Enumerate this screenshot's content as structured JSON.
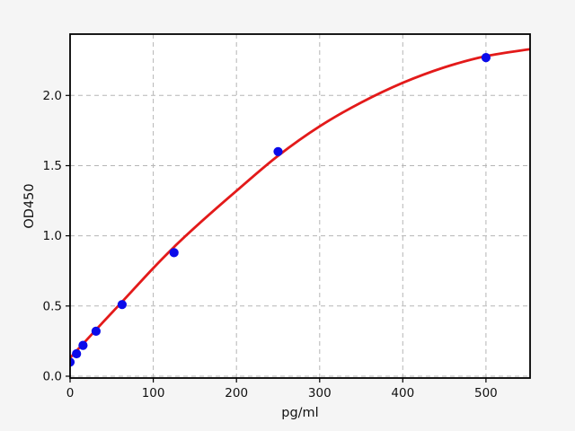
{
  "chart_data": {
    "type": "scatter",
    "xlabel": "pg/ml",
    "ylabel": "OD450",
    "x_tick_labels": [
      "0",
      "100",
      "200",
      "300",
      "400",
      "500"
    ],
    "y_tick_labels": [
      "0.0",
      "0.5",
      "1.0",
      "1.5",
      "2.0"
    ],
    "xlim": [
      0,
      553
    ],
    "ylim": [
      -0.013,
      2.437
    ],
    "grid": "dashed",
    "colors": {
      "figure_background": "#f5f5f5",
      "plot_background": "#ffffff",
      "grid": "#b5b5b5",
      "spine": "#000000",
      "points": "#0b0bea",
      "fit_line": "#e31a1a"
    },
    "series": [
      {
        "name": "standard-points",
        "type": "scatter",
        "marker": "circle",
        "color": "#0b0bea",
        "x": [
          0,
          7.8,
          15.6,
          31.25,
          62.5,
          125,
          250,
          500
        ],
        "y": [
          0.1,
          0.16,
          0.22,
          0.32,
          0.51,
          0.88,
          1.6,
          2.27
        ]
      },
      {
        "name": "fit-curve-4pl",
        "type": "line",
        "color": "#e31a1a",
        "x": [
          0,
          31,
          62.5,
          100,
          125,
          150,
          200,
          250,
          300,
          350,
          400,
          450,
          500,
          553
        ],
        "y": [
          0.13,
          0.33,
          0.53,
          0.77,
          0.92,
          1.06,
          1.32,
          1.57,
          1.78,
          1.95,
          2.09,
          2.2,
          2.28,
          2.33
        ]
      }
    ]
  }
}
